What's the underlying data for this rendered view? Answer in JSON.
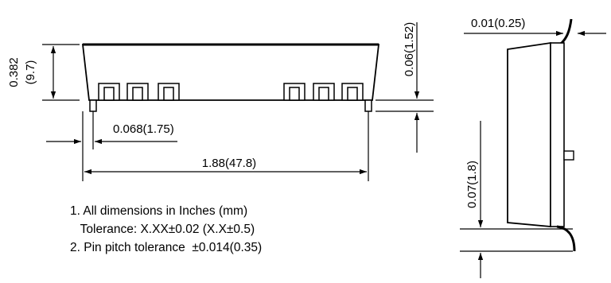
{
  "front_view": {
    "height_label": "0.382",
    "height_mm_label": "(9.7)",
    "pin_height_label": "0.06(1.52)",
    "pin_offset_label": "0.068(1.75)",
    "length_label": "1.88(47.8)"
  },
  "side_view": {
    "top_pin_label": "0.01(0.25)",
    "pin_length_label": "0.07(1.8)"
  },
  "notes": {
    "line1": "1. All dimensions in Inches (mm)",
    "line2": "   Tolerance: X.XX±0.02 (X.X±0.5)",
    "line3": "2. Pin pitch tolerance  ±0.014(0.35)"
  }
}
